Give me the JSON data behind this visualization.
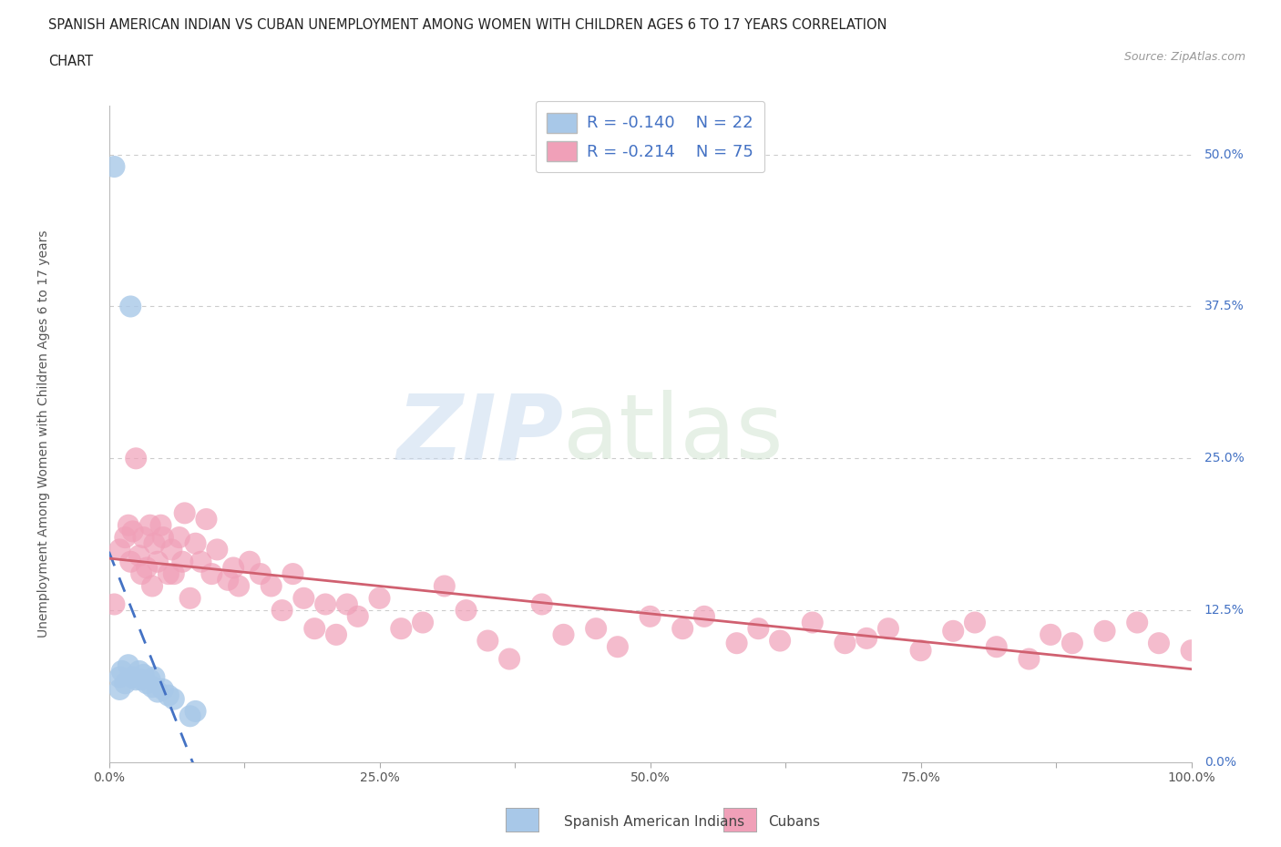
{
  "title_line1": "SPANISH AMERICAN INDIAN VS CUBAN UNEMPLOYMENT AMONG WOMEN WITH CHILDREN AGES 6 TO 17 YEARS CORRELATION",
  "title_line2": "CHART",
  "source": "Source: ZipAtlas.com",
  "ylabel": "Unemployment Among Women with Children Ages 6 to 17 years",
  "background_color": "#ffffff",
  "legend_r1": "R = -0.140",
  "legend_n1": "N = 22",
  "legend_r2": "R = -0.214",
  "legend_n2": "N = 75",
  "legend_label1": "Spanish American Indians",
  "legend_label2": "Cubans",
  "color_blue": "#A8C8E8",
  "color_pink": "#F0A0B8",
  "line_color_blue": "#4472C4",
  "line_color_pink": "#D06070",
  "r_value_color": "#4472C4",
  "xlim": [
    0.0,
    1.0
  ],
  "ylim": [
    0.0,
    0.54
  ],
  "xtick_vals": [
    0.0,
    0.125,
    0.25,
    0.375,
    0.5,
    0.625,
    0.75,
    0.875,
    1.0
  ],
  "xtick_labels": [
    "0.0%",
    "",
    "25.0%",
    "",
    "50.0%",
    "",
    "75.0%",
    "",
    "100.0%"
  ],
  "ytick_vals": [
    0.0,
    0.125,
    0.25,
    0.375,
    0.5
  ],
  "ytick_labels": [
    "0.0%",
    "12.5%",
    "25.0%",
    "37.5%",
    "50.0%"
  ],
  "grid_color": "#CCCCCC",
  "blue_x": [
    0.005,
    0.01,
    0.01,
    0.012,
    0.015,
    0.018,
    0.02,
    0.022,
    0.025,
    0.028,
    0.03,
    0.032,
    0.035,
    0.038,
    0.04,
    0.042,
    0.045,
    0.05,
    0.055,
    0.06,
    0.075,
    0.08
  ],
  "blue_y": [
    0.49,
    0.06,
    0.07,
    0.075,
    0.065,
    0.08,
    0.375,
    0.07,
    0.068,
    0.075,
    0.068,
    0.072,
    0.065,
    0.068,
    0.062,
    0.07,
    0.058,
    0.06,
    0.055,
    0.052,
    0.038,
    0.042
  ],
  "pink_x": [
    0.005,
    0.01,
    0.015,
    0.018,
    0.02,
    0.022,
    0.025,
    0.028,
    0.03,
    0.032,
    0.035,
    0.038,
    0.04,
    0.042,
    0.045,
    0.048,
    0.05,
    0.055,
    0.058,
    0.06,
    0.065,
    0.068,
    0.07,
    0.075,
    0.08,
    0.085,
    0.09,
    0.095,
    0.1,
    0.11,
    0.115,
    0.12,
    0.13,
    0.14,
    0.15,
    0.16,
    0.17,
    0.18,
    0.19,
    0.2,
    0.21,
    0.22,
    0.23,
    0.25,
    0.27,
    0.29,
    0.31,
    0.33,
    0.35,
    0.37,
    0.4,
    0.42,
    0.45,
    0.47,
    0.5,
    0.53,
    0.55,
    0.58,
    0.6,
    0.62,
    0.65,
    0.68,
    0.7,
    0.72,
    0.75,
    0.78,
    0.8,
    0.82,
    0.85,
    0.87,
    0.89,
    0.92,
    0.95,
    0.97,
    1.0
  ],
  "pink_y": [
    0.13,
    0.175,
    0.185,
    0.195,
    0.165,
    0.19,
    0.25,
    0.17,
    0.155,
    0.185,
    0.16,
    0.195,
    0.145,
    0.18,
    0.165,
    0.195,
    0.185,
    0.155,
    0.175,
    0.155,
    0.185,
    0.165,
    0.205,
    0.135,
    0.18,
    0.165,
    0.2,
    0.155,
    0.175,
    0.15,
    0.16,
    0.145,
    0.165,
    0.155,
    0.145,
    0.125,
    0.155,
    0.135,
    0.11,
    0.13,
    0.105,
    0.13,
    0.12,
    0.135,
    0.11,
    0.115,
    0.145,
    0.125,
    0.1,
    0.085,
    0.13,
    0.105,
    0.11,
    0.095,
    0.12,
    0.11,
    0.12,
    0.098,
    0.11,
    0.1,
    0.115,
    0.098,
    0.102,
    0.11,
    0.092,
    0.108,
    0.115,
    0.095,
    0.085,
    0.105,
    0.098,
    0.108,
    0.115,
    0.098,
    0.092
  ]
}
